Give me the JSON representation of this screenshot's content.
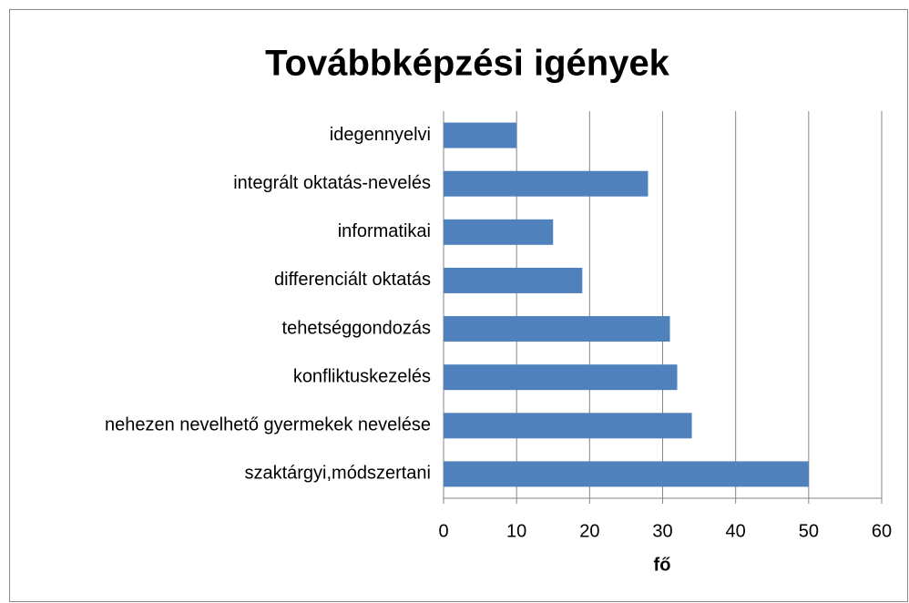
{
  "chart_data": {
    "type": "bar",
    "orientation": "horizontal",
    "title": "Továbbképzési igények",
    "categories": [
      "idegennyelvi",
      "integrált oktatás-nevelés",
      "informatikai",
      "differenciált oktatás",
      "tehetséggondozás",
      "konfliktuskezelés",
      "nehezen nevelhető gyermekek nevelése",
      "szaktárgyi,módszertani"
    ],
    "values": [
      10,
      28,
      15,
      19,
      31,
      32,
      34,
      50
    ],
    "color": "#4f81bd",
    "x_label": "fő",
    "xlim": [
      0,
      60
    ],
    "xticks": [
      0,
      10,
      20,
      30,
      40,
      50,
      60
    ],
    "grid": true
  }
}
